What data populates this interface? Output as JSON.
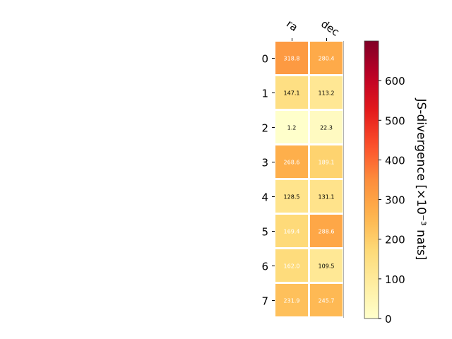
{
  "chart_data": {
    "type": "heatmap",
    "columns": [
      "ra",
      "dec"
    ],
    "rows": [
      "0",
      "1",
      "2",
      "3",
      "4",
      "5",
      "6",
      "7"
    ],
    "values": [
      [
        318.8,
        280.4
      ],
      [
        147.1,
        113.2
      ],
      [
        1.2,
        22.3
      ],
      [
        268.6,
        189.1
      ],
      [
        128.5,
        131.1
      ],
      [
        169.4,
        288.6
      ],
      [
        162.0,
        109.5
      ],
      [
        231.9,
        245.7
      ]
    ],
    "value_labels": [
      [
        "318.8",
        "280.4"
      ],
      [
        "147.1",
        "113.2"
      ],
      [
        "1.2",
        "22.3"
      ],
      [
        "268.6",
        "189.1"
      ],
      [
        "128.5",
        "131.1"
      ],
      [
        "169.4",
        "288.6"
      ],
      [
        "162.0",
        "109.5"
      ],
      [
        "231.9",
        "245.7"
      ]
    ],
    "colorbar": {
      "label": "JS-divergence [×10⁻³ nats]",
      "range": [
        0,
        700
      ],
      "ticks": [
        "0",
        "100",
        "200",
        "300",
        "400",
        "500",
        "600"
      ],
      "tick_values": [
        0,
        100,
        200,
        300,
        400,
        500,
        600
      ],
      "colormap": "YlOrRd"
    },
    "xlabel": "",
    "ylabel": "",
    "title": ""
  }
}
